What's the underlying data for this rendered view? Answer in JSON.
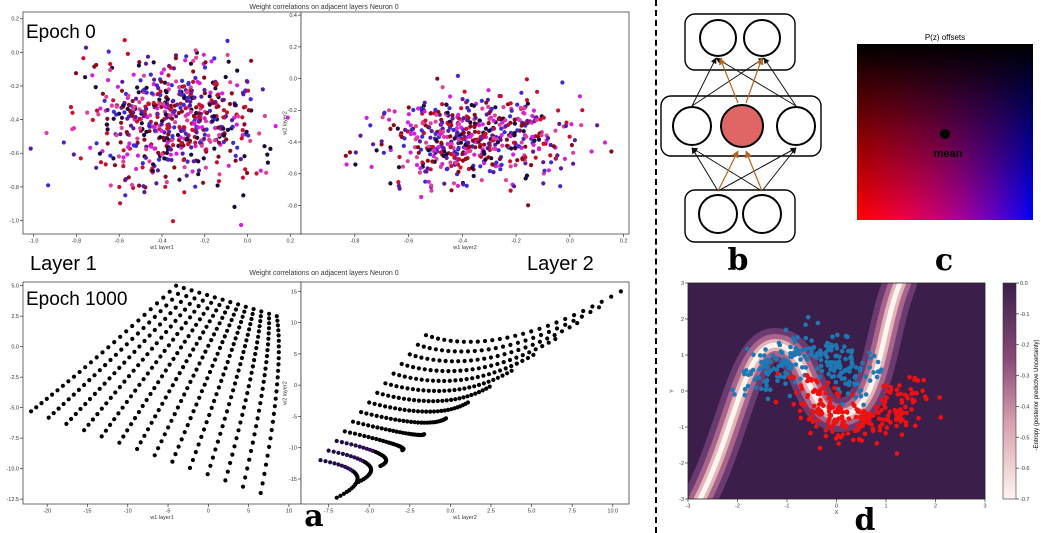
{
  "panel_a": {
    "letter": "a",
    "top_title": "Weight correlations on adjacent layers Neuron 0",
    "bottom_title": "Weight correlations on adjacent layers Neuron 0",
    "epoch_top": "Epoch 0",
    "epoch_bottom": "Epoch 1000",
    "layer1_label": "Layer 1",
    "layer2_label": "Layer 2"
  },
  "panel_b": {
    "letter": "b"
  },
  "panel_c": {
    "letter": "c",
    "title": "P(z) offsets",
    "mean_label": "mean"
  },
  "panel_d": {
    "letter": "d"
  },
  "colors": {
    "dark": "#1b0a3a",
    "purple": "#5b1a9e",
    "blue": "#3a2ad8",
    "magenta": "#d61fe0",
    "red": "#c8102e",
    "pink": "#e0409a",
    "dark_red": "#8a0a1a",
    "node_fill": "#e06666",
    "arrow_orange": "#b5651d",
    "moon_blue": "#1f77b4",
    "moon_red": "#ee1111"
  },
  "chart_data": [
    {
      "id": "a-top-left",
      "type": "scatter",
      "title": "Weight correlations on adjacent layers Neuron 0",
      "xlabel": "w1 layer1",
      "ylabel": "",
      "xlim": [
        -1.05,
        0.25
      ],
      "ylim": [
        -1.08,
        0.24
      ],
      "xticks": [
        "-1.0",
        "-0.8",
        "-0.6",
        "-0.4",
        "-0.2",
        "0.0",
        "0.2"
      ],
      "xtick_values": [
        -1.0,
        -0.8,
        -0.6,
        -0.4,
        -0.2,
        0.0,
        0.2
      ],
      "yticks": [
        "0.2",
        "0.0",
        "-0.2",
        "-0.4",
        "-0.6",
        "-0.8",
        "-1.0"
      ],
      "ytick_values": [
        0.2,
        0.0,
        -0.2,
        -0.4,
        -0.6,
        -0.8,
        -1.0
      ],
      "cloud": {
        "mean_x": -0.35,
        "mean_y": -0.4,
        "sd_x": 0.19,
        "sd_y": 0.19,
        "count": 620
      }
    },
    {
      "id": "a-top-right",
      "type": "scatter",
      "title": "",
      "xlabel": "w1 layer2",
      "ylabel": "w2 layer2",
      "xlim": [
        -1.0,
        0.22
      ],
      "ylim": [
        -0.98,
        0.42
      ],
      "xticks": [
        "-0.8",
        "-0.6",
        "-0.4",
        "-0.2",
        "0.0",
        "0.2"
      ],
      "xtick_values": [
        -0.8,
        -0.6,
        -0.4,
        -0.2,
        0.0,
        0.2
      ],
      "yticks": [
        "0.4",
        "0.2",
        "0.0",
        "-0.2",
        "-0.4",
        "-0.6",
        "-0.8"
      ],
      "ytick_values": [
        0.4,
        0.2,
        0.0,
        -0.2,
        -0.4,
        -0.6,
        -0.8
      ],
      "cloud": {
        "mean_x": -0.36,
        "mean_y": -0.38,
        "sd_x": 0.17,
        "sd_y": 0.14,
        "count": 560
      }
    },
    {
      "id": "a-bottom-left",
      "type": "scatter",
      "title": "Weight correlations on adjacent layers Neuron 0",
      "xlabel": "w1 layer1",
      "ylabel": "",
      "xlim": [
        -23,
        11.5
      ],
      "ylim": [
        -12.9,
        5.3
      ],
      "xticks": [
        "-20",
        "-15",
        "-10",
        "-5",
        "0",
        "5",
        "10"
      ],
      "xtick_values": [
        -20,
        -15,
        -10,
        -5,
        0,
        5,
        10
      ],
      "yticks": [
        "5.0",
        "2.5",
        "0.0",
        "-2.5",
        "-5.0",
        "-7.5",
        "-10.0",
        "-12.5"
      ],
      "ytick_values": [
        5.0,
        2.5,
        0.0,
        -2.5,
        -5.0,
        -7.5,
        -10.0,
        -12.5
      ],
      "grid": {
        "corner_start": [
          -4,
          5
        ],
        "corner_end": [
          8.5,
          2.5
        ],
        "strands": 14,
        "per_strand": 26
      }
    },
    {
      "id": "a-bottom-right",
      "type": "scatter",
      "title": "",
      "xlabel": "w1 layer2",
      "ylabel": "w2 layer2",
      "xlim": [
        -9.2,
        11
      ],
      "ylim": [
        -19,
        16.5
      ],
      "xticks": [
        "-7.5",
        "-5.0",
        "-2.5",
        "0.0",
        "2.5",
        "5.0",
        "7.5",
        "10.0"
      ],
      "xtick_values": [
        -7.5,
        -5.0,
        -2.5,
        0.0,
        2.5,
        5.0,
        7.5,
        10.0
      ],
      "yticks": [
        "15",
        "10",
        "5",
        "0",
        "-5",
        "-10",
        "-15"
      ],
      "ytick_values": [
        15,
        10,
        5,
        0,
        -5,
        -10,
        -15
      ],
      "grid": {
        "strands": 14,
        "per_strand": 26
      }
    },
    {
      "id": "d-moons",
      "type": "scatter",
      "title": "",
      "xlabel": "X",
      "ylabel": "Y",
      "xlim": [
        -3,
        3
      ],
      "ylim": [
        -3,
        3
      ],
      "xticks": [
        "-3",
        "-2",
        "-1",
        "0",
        "1",
        "2",
        "3"
      ],
      "xtick_values": [
        -3,
        -2,
        -1,
        0,
        1,
        2,
        3
      ],
      "yticks": [
        "3",
        "2",
        "1",
        "0",
        "-1",
        "-2",
        "-3"
      ],
      "ytick_values": [
        3,
        2,
        1,
        0,
        -1,
        -2,
        -3
      ],
      "series": [
        {
          "class": "upper moon",
          "color": "#1f77b4",
          "count": 230
        },
        {
          "class": "lower moon",
          "color": "#ee1111",
          "count": 230
        }
      ],
      "colorbar": {
        "label": "-Entropy (posterior predictive Uncertainty)",
        "ticks": [
          "0.0",
          "-0.1",
          "-0.2",
          "-0.3",
          "-0.4",
          "-0.5",
          "-0.6",
          "-0.7"
        ],
        "tick_values": [
          0.0,
          -0.1,
          -0.2,
          -0.3,
          -0.4,
          -0.5,
          -0.6,
          -0.7
        ],
        "range": [
          -0.7,
          0.0
        ]
      }
    }
  ]
}
